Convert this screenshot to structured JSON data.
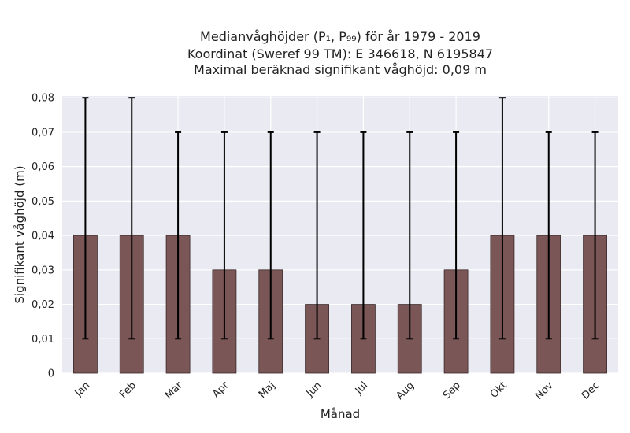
{
  "chart_data": {
    "type": "bar",
    "title_lines": [
      "Medianvåghöjder (P₁, P₉₉) för år 1979 - 2019",
      "Koordinat (Sweref 99 TM): E 346618, N 6195847",
      "Maximal beräknad signifikant våghöjd: 0,09 m"
    ],
    "xlabel": "Månad",
    "ylabel": "Signifikant våghöjd (m)",
    "categories": [
      "Jan",
      "Feb",
      "Mar",
      "Apr",
      "Maj",
      "Jun",
      "Jul",
      "Aug",
      "Sep",
      "Okt",
      "Nov",
      "Dec"
    ],
    "series": [
      {
        "values": [
          0.04,
          0.04,
          0.04,
          0.03,
          0.03,
          0.02,
          0.02,
          0.02,
          0.03,
          0.04,
          0.04,
          0.04
        ],
        "error_low": [
          0.01,
          0.01,
          0.01,
          0.01,
          0.01,
          0.01,
          0.01,
          0.01,
          0.01,
          0.01,
          0.01,
          0.01
        ],
        "error_high": [
          0.08,
          0.08,
          0.07,
          0.07,
          0.07,
          0.07,
          0.07,
          0.07,
          0.07,
          0.08,
          0.07,
          0.07
        ]
      }
    ],
    "yticks": [
      0,
      0.01,
      0.02,
      0.03,
      0.04,
      0.05,
      0.06,
      0.07,
      0.08
    ],
    "ytick_labels": [
      "0",
      "0,01",
      "0,02",
      "0,03",
      "0,04",
      "0,05",
      "0,06",
      "0,07",
      "0,08"
    ],
    "ylim": [
      0,
      0.0805
    ],
    "grid": true,
    "colors": {
      "bar": "#7a5656",
      "bar_edge": "#3a2a2a",
      "error": "#000000",
      "plot_bg": "#eaeaf2",
      "grid": "#ffffff"
    }
  }
}
